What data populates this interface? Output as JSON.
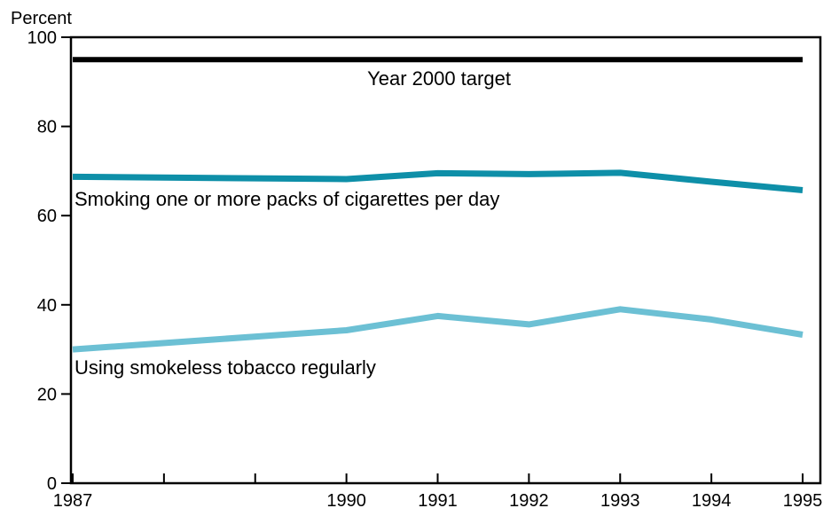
{
  "chart_data": {
    "type": "line",
    "ylabel": "Percent",
    "ylim": [
      0,
      100
    ],
    "yticks": [
      0,
      20,
      40,
      60,
      80,
      100
    ],
    "xlim": [
      1987,
      1995
    ],
    "xticks": [
      1987,
      1988,
      1989,
      1990,
      1991,
      1992,
      1993,
      1994,
      1995
    ],
    "xtick_labels": [
      "1987",
      "",
      "",
      "1990",
      "1991",
      "1992",
      "1993",
      "1994",
      "1995"
    ],
    "grid": false,
    "legend": "none (series labelled inline)",
    "series": [
      {
        "name": "Year 2000 target",
        "color": "#000000",
        "x": [
          1987,
          1995
        ],
        "values": [
          95,
          95
        ]
      },
      {
        "name": "Smoking one or more packs of cigarettes per day",
        "color": "#0e8fa8",
        "x": [
          1987,
          1990,
          1991,
          1992,
          1993,
          1994,
          1995
        ],
        "values": [
          68.7,
          68.2,
          69.5,
          69.3,
          69.6,
          67.6,
          65.7
        ]
      },
      {
        "name": "Using smokeless tobacco regularly",
        "color": "#6cc0d4",
        "x": [
          1987,
          1990,
          1991,
          1992,
          1993,
          1994,
          1995
        ],
        "values": [
          30,
          34.3,
          37.5,
          35.6,
          39,
          36.7,
          33.3
        ]
      }
    ]
  }
}
